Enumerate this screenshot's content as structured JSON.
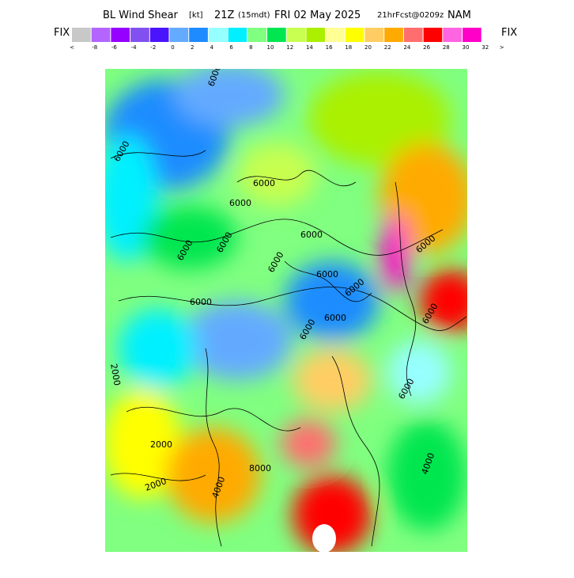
{
  "header": {
    "title_left": "BL Wind Shear",
    "units": "[kt]",
    "time": "21Z",
    "local": "(15mdt)",
    "date": "FRI 02 May 2025",
    "forecast": "21hrFcst@0209z",
    "model": "NAM"
  },
  "legend": {
    "left_label": "FIX",
    "right_label": "FIX",
    "ticks": [
      "<",
      "-8",
      "-6",
      "-4",
      "-2",
      "0",
      "2",
      "4",
      "6",
      "8",
      "10",
      "12",
      "14",
      "16",
      "18",
      "20",
      "22",
      "24",
      "26",
      "28",
      "30",
      "32",
      ">"
    ],
    "colors": [
      "#c8c8c8",
      "#b464ff",
      "#9600ff",
      "#8250f0",
      "#4b14ff",
      "#64aaff",
      "#1e8cff",
      "#96ffff",
      "#00f0ff",
      "#80ff80",
      "#00e650",
      "#c8ff50",
      "#aaf000",
      "#ffff96",
      "#ffff00",
      "#ffcd64",
      "#ffaa00",
      "#ff6e6e",
      "#ff0000",
      "#ff64e1",
      "#ff00c8"
    ]
  },
  "contour_labels": [
    "6000",
    "6000",
    "6000",
    "6000",
    "6000",
    "6000",
    "6000",
    "6000",
    "6000",
    "6000",
    "6000",
    "6000",
    "6000",
    "6000",
    "6000",
    "6000",
    "2000",
    "2000",
    "2000",
    "4000",
    "4000",
    "8000"
  ]
}
